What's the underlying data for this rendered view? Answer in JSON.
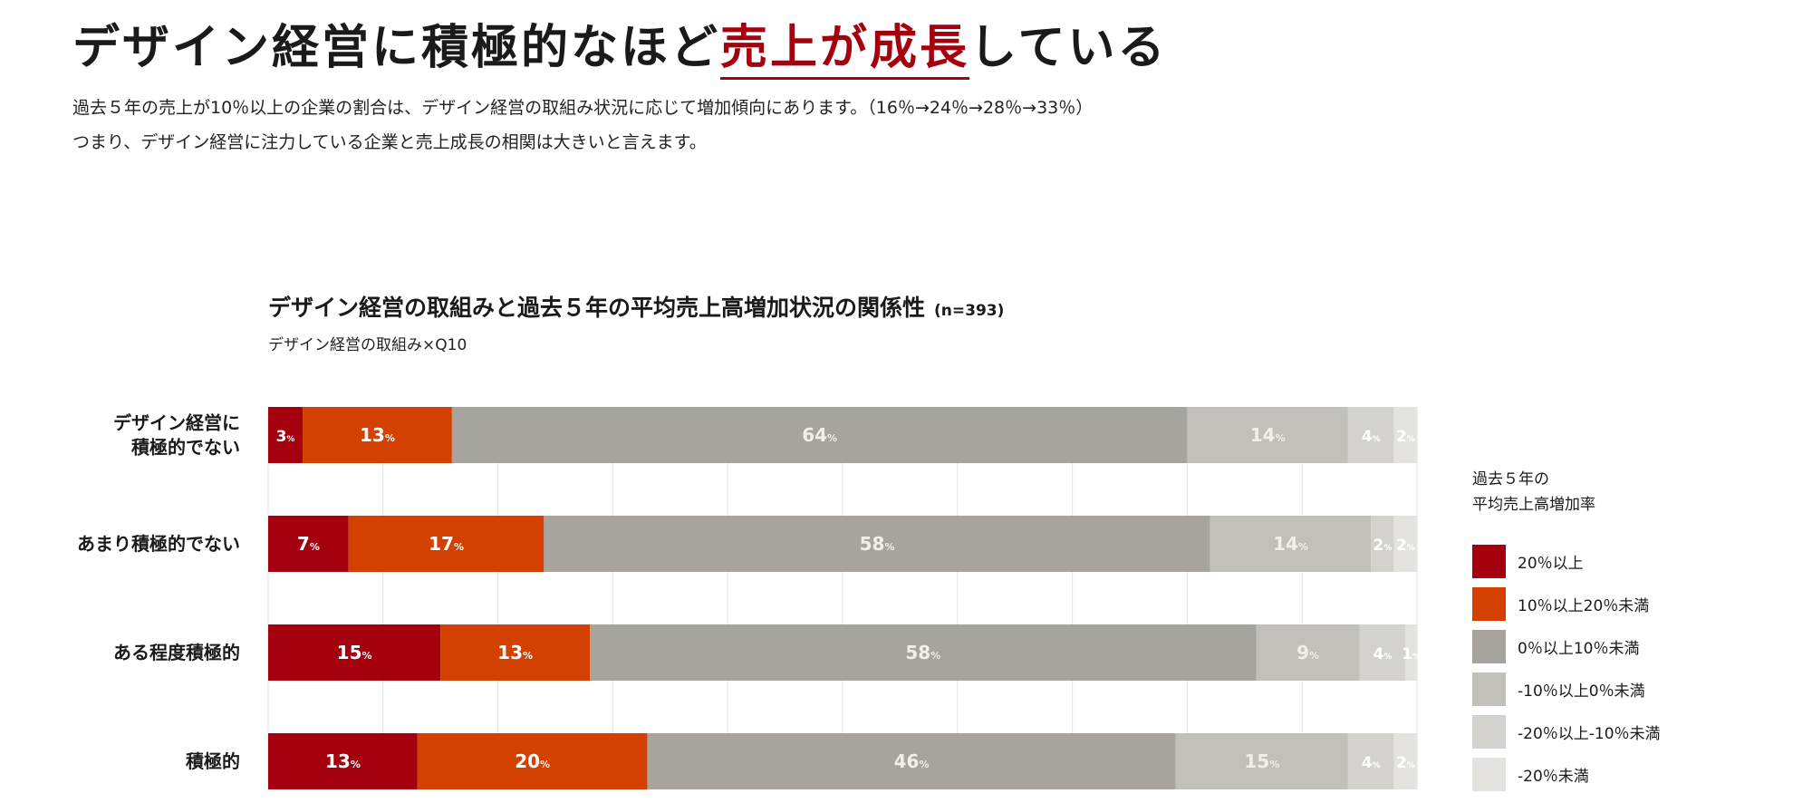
{
  "header": {
    "title_pre": "デザイン経営に積極的なほど",
    "title_highlight": "売上が成長",
    "title_post": "している",
    "desc_line1": "過去５年の売上が10％以上の企業の割合は、デザイン経営の取組み状況に応じて増加傾向にあります。（16％→24％→28％→33％）",
    "desc_line2": "つまり、デザイン経営に注力している企業と売上成長の相関は大きいと言えます。"
  },
  "chart_data": {
    "type": "bar",
    "orientation": "horizontal",
    "stacked": true,
    "title": "デザイン経営の取組みと過去５年の平均売上高増加状況の関係性",
    "title_note": "(n=393)",
    "subtitle": "デザイン経営の取組み×Q10",
    "categories": [
      "デザイン経営に\n積極的でない",
      "あまり積極的でない",
      "ある程度積極的",
      "積極的"
    ],
    "xlim": [
      0,
      100
    ],
    "grid": true,
    "value_suffix": "%",
    "legend_title": "過去５年の\n平均売上高増加率",
    "legend_position": "right",
    "series": [
      {
        "name": "20％以上",
        "color": "#a5000d",
        "values": [
          3,
          7,
          15,
          13
        ]
      },
      {
        "name": "10％以上20％未満",
        "color": "#d34000",
        "values": [
          13,
          17,
          13,
          20
        ]
      },
      {
        "name": "0％以上10％未満",
        "color": "#a7a39d",
        "values": [
          64,
          58,
          58,
          46
        ]
      },
      {
        "name": "-10％以上0％未満",
        "color": "#c2c0ba",
        "values": [
          14,
          14,
          9,
          15
        ]
      },
      {
        "name": "-20％以上-10％未満",
        "color": "#d3d2ce",
        "values": [
          4,
          2,
          4,
          4
        ]
      },
      {
        "name": "-20％未満",
        "color": "#e4e3e0",
        "values": [
          2,
          2,
          1,
          2
        ]
      }
    ]
  }
}
